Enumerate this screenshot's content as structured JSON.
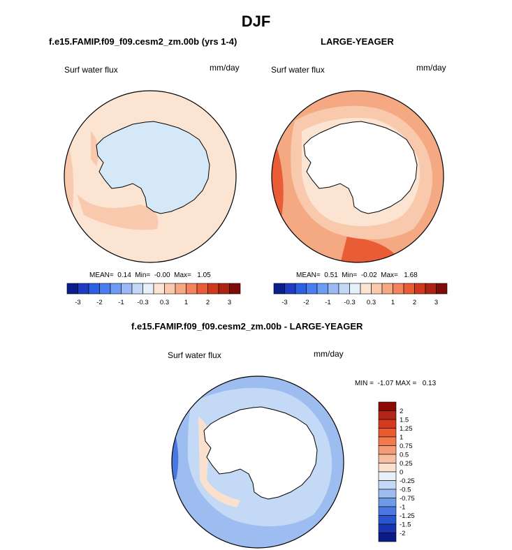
{
  "season": "DJF",
  "panels": [
    {
      "title": "f.e15.FAMIP.f09_f09.cesm2_zm.00b (yrs 1-4)",
      "variable": "Surf water flux",
      "units": "mm/day",
      "stats": "MEAN=  0.14  Min=  -0.00  Max=   1.05"
    },
    {
      "title": "LARGE-YEAGER",
      "variable": "Surf water flux",
      "units": "mm/day",
      "stats": "MEAN=  0.51  Min=  -0.02  Max=   1.68"
    }
  ],
  "colorbar_horizontal": {
    "colors": [
      "#0a1e8c",
      "#1f3cc0",
      "#2e5fe0",
      "#4a7ef0",
      "#6e9cf2",
      "#9ab9f5",
      "#c4d7f7",
      "#e6f0fb",
      "#fbe4d2",
      "#f8c9ac",
      "#f5a983",
      "#f2835c",
      "#e85c36",
      "#cf3a1e",
      "#ac2414",
      "#7d0c08"
    ],
    "tick_labels": [
      "-3",
      "-2",
      "-1",
      "-0.3",
      "0.3",
      "1",
      "2",
      "3"
    ]
  },
  "diff": {
    "title": "f.e15.FAMIP.f09_f09.cesm2_zm.00b - LARGE-YEAGER",
    "variable": "Surf water flux",
    "units": "mm/day",
    "stats": "MIN =  -1.07 MAX =   0.13",
    "colorbar": {
      "labels": [
        "2",
        "1.5",
        "1.25",
        "1",
        "0.75",
        "0.5",
        "0.25",
        "0",
        "-0.25",
        "-0.5",
        "-0.75",
        "-1",
        "-1.25",
        "-1.5",
        "-2"
      ],
      "colors": [
        "#8b0a05",
        "#b32515",
        "#d63a1e",
        "#ea5a2f",
        "#f27b4e",
        "#f59c76",
        "#f8bea0",
        "#fbe1cd",
        "#e8f1fb",
        "#c4d9f5",
        "#9dbdf0",
        "#6f9ae8",
        "#4a78e0",
        "#2a55d0",
        "#1934b0",
        "#0c1c86"
      ]
    }
  }
}
